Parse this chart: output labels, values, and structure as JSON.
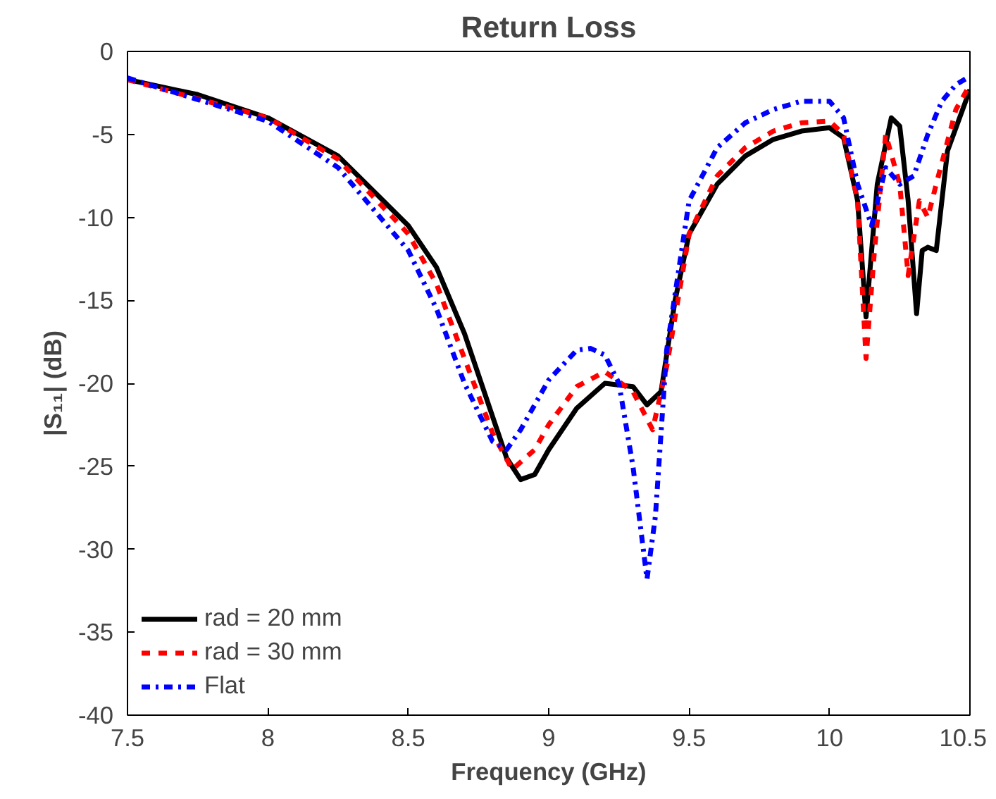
{
  "chart_data": {
    "type": "line",
    "title": "Return Loss",
    "xlabel": "Frequency (GHz)",
    "ylabel": "|S₁₁| (dB)",
    "xlim": [
      7.5,
      10.5
    ],
    "xticks": [
      7.5,
      8,
      8.5,
      9,
      9.5,
      10,
      10.5
    ],
    "ylim": [
      -40,
      0
    ],
    "yticks": [
      -40,
      -35,
      -30,
      -25,
      -20,
      -15,
      -10,
      -5,
      0
    ],
    "grid": false,
    "legend": "bottom left",
    "series": [
      {
        "name": "rad = 20 mm",
        "color": "#000000",
        "line_style": "solid",
        "x": [
          7.5,
          7.75,
          8.0,
          8.25,
          8.5,
          8.6,
          8.7,
          8.8,
          8.85,
          8.9,
          8.95,
          9.0,
          9.1,
          9.2,
          9.3,
          9.35,
          9.4,
          9.45,
          9.5,
          9.6,
          9.7,
          9.8,
          9.9,
          10.0,
          10.05,
          10.1,
          10.13,
          10.17,
          10.22,
          10.25,
          10.28,
          10.31,
          10.33,
          10.35,
          10.38,
          10.42,
          10.5
        ],
        "values": [
          -1.7,
          -2.6,
          -4.0,
          -6.3,
          -10.5,
          -13,
          -17,
          -22,
          -24.5,
          -25.8,
          -25.5,
          -24,
          -21.5,
          -20,
          -20.2,
          -21.3,
          -20.5,
          -15,
          -11,
          -8,
          -6.3,
          -5.3,
          -4.8,
          -4.6,
          -5.2,
          -9,
          -16,
          -8,
          -4,
          -4.5,
          -9,
          -15.8,
          -12,
          -11.8,
          -12,
          -6,
          -2.3
        ]
      },
      {
        "name": "rad = 30 mm",
        "color": "#ff0000",
        "line_style": "dashed",
        "x": [
          7.5,
          8.0,
          8.25,
          8.5,
          8.6,
          8.7,
          8.8,
          8.87,
          8.95,
          9.0,
          9.1,
          9.2,
          9.3,
          9.37,
          9.42,
          9.5,
          9.6,
          9.7,
          9.8,
          9.9,
          10.0,
          10.05,
          10.1,
          10.13,
          10.16,
          10.2,
          10.25,
          10.28,
          10.32,
          10.35,
          10.38,
          10.45,
          10.5
        ],
        "values": [
          -1.7,
          -4.0,
          -6.5,
          -11,
          -14,
          -18.5,
          -23,
          -25.2,
          -24,
          -22.5,
          -20.2,
          -19.3,
          -20.5,
          -22.8,
          -19,
          -11,
          -7.5,
          -5.8,
          -4.8,
          -4.3,
          -4.2,
          -5,
          -9,
          -18.5,
          -12,
          -5,
          -8,
          -13.5,
          -9,
          -10,
          -8,
          -3.5,
          -2
        ]
      },
      {
        "name": "Flat",
        "color": "#0000ff",
        "line_style": "dashdot",
        "x": [
          7.5,
          8.0,
          8.25,
          8.5,
          8.6,
          8.7,
          8.8,
          8.85,
          8.9,
          9.0,
          9.1,
          9.15,
          9.2,
          9.25,
          9.3,
          9.35,
          9.38,
          9.42,
          9.5,
          9.6,
          9.7,
          9.8,
          9.9,
          10.0,
          10.05,
          10.1,
          10.15,
          10.2,
          10.25,
          10.3,
          10.35,
          10.4,
          10.45,
          10.5
        ],
        "values": [
          -1.6,
          -4.2,
          -7,
          -12,
          -15.5,
          -20,
          -23.5,
          -24,
          -22.8,
          -19.8,
          -18,
          -17.9,
          -18.3,
          -20,
          -25,
          -31.8,
          -28,
          -18,
          -9,
          -5.8,
          -4.3,
          -3.5,
          -3,
          -3,
          -4,
          -8,
          -10.5,
          -7,
          -8,
          -7.5,
          -5,
          -3,
          -2,
          -1.5
        ]
      }
    ]
  }
}
